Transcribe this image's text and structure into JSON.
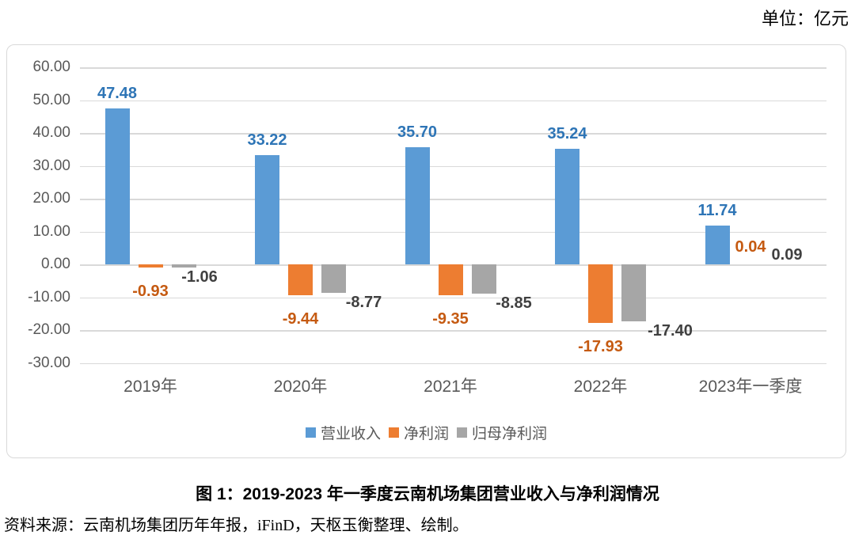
{
  "unit_label": "单位：亿元",
  "caption": "图 1：2019-2023 年一季度云南机场集团营业收入与净利润情况",
  "source": "资料来源：云南机场集团历年年报，iFinD，天枢玉衡整理、绘制。",
  "colors": {
    "revenue_bar": "#5B9BD5",
    "net_profit_bar": "#ED7D31",
    "parent_net_profit_bar": "#A6A6A6",
    "revenue_label": "#2E75B6",
    "net_profit_label": "#C55A11",
    "parent_net_profit_label": "#404040",
    "axis_text": "#595959",
    "gridline": "#D9D9D9"
  },
  "chart_data": {
    "type": "bar",
    "categories": [
      "2019年",
      "2020年",
      "2021年",
      "2022年",
      "2023年一季度"
    ],
    "series": [
      {
        "name": "营业收入",
        "role": "revenue",
        "values": [
          47.48,
          33.22,
          35.7,
          35.24,
          11.74
        ]
      },
      {
        "name": "净利润",
        "role": "net_profit",
        "values": [
          -0.93,
          -9.44,
          -9.35,
          -17.93,
          0.04
        ]
      },
      {
        "name": "归母净利润",
        "role": "parent_net_profit",
        "values": [
          -1.06,
          -8.77,
          -8.85,
          -17.4,
          0.09
        ]
      }
    ],
    "value_label_format": "0.00",
    "ylabel": "",
    "xlabel": "",
    "unit": "亿元",
    "ylim": [
      -30,
      60
    ],
    "ytick_step": 10,
    "ytick_labels": [
      "60.00",
      "50.00",
      "40.00",
      "30.00",
      "20.00",
      "10.00",
      "0.00",
      "-10.00",
      "-20.00",
      "-30.00"
    ],
    "grid": true,
    "legend_position": "bottom",
    "value_labels": true
  }
}
